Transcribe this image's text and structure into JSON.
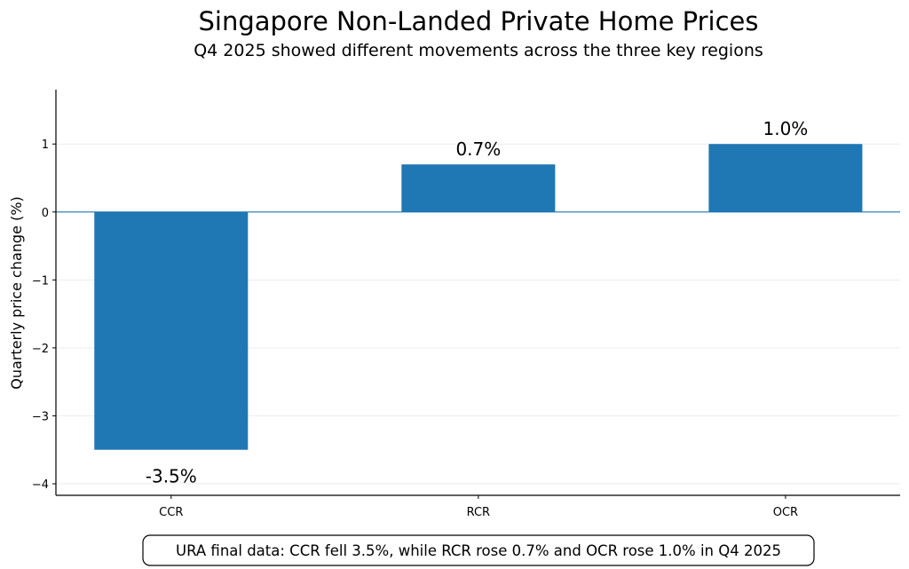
{
  "chart_data": {
    "type": "bar",
    "title": "Singapore Non-Landed Private Home Prices",
    "subtitle": "Q4 2025 showed different movements across the three key regions",
    "xlabel": "",
    "ylabel": "Quarterly price change (%)",
    "categories": [
      "CCR",
      "RCR",
      "OCR"
    ],
    "values": [
      -3.5,
      0.7,
      1.0
    ],
    "data_labels": [
      "-3.5%",
      "0.7%",
      "1.0%"
    ],
    "ylim": [
      -4.17,
      1.8
    ],
    "yticks": [
      1,
      0,
      -1,
      -2,
      -3,
      -4
    ],
    "ytick_labels": [
      "1",
      "0",
      "−1",
      "−2",
      "−3",
      "−4"
    ],
    "grid": "horizontal",
    "bar_color": "#1f77b4",
    "zero_line_color": "#1f77b4",
    "annotation": "URA final data: CCR fell 3.5%, while RCR rose 0.7% and OCR rose 1.0% in Q4 2025"
  }
}
